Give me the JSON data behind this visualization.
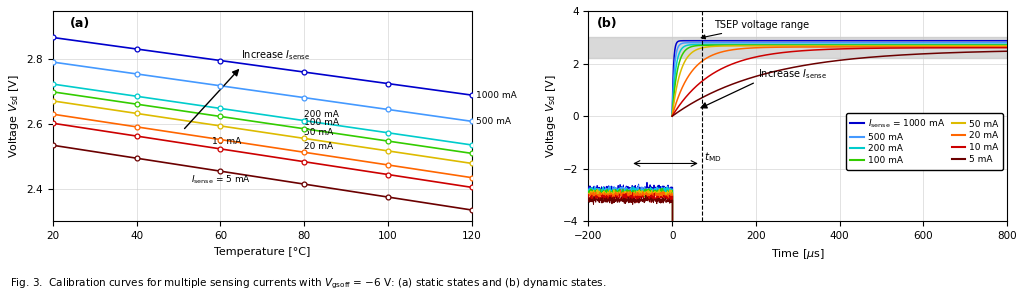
{
  "panel_a": {
    "title": "(a)",
    "xlabel": "Temperature [°C]",
    "ylabel": "Voltage $V_{\\rm sd}$ [V]",
    "xlim": [
      20,
      120
    ],
    "ylim": [
      2.3,
      2.95
    ],
    "xticks": [
      20,
      40,
      60,
      80,
      100,
      120
    ],
    "yticks": [
      2.4,
      2.6,
      2.8
    ],
    "temps": [
      20,
      40,
      60,
      80,
      100,
      120
    ],
    "currents": [
      5,
      10,
      20,
      50,
      100,
      200,
      500,
      1000
    ],
    "colors": [
      "#6B0000",
      "#CC0000",
      "#FF6600",
      "#DDBB00",
      "#33CC00",
      "#00CCCC",
      "#4499FF",
      "#0000CC"
    ],
    "intercepts": [
      2.535,
      2.603,
      2.631,
      2.672,
      2.7,
      2.724,
      2.792,
      2.868
    ],
    "slopes": [
      -0.002,
      -0.00198,
      -0.00196,
      -0.00193,
      -0.0019,
      -0.00188,
      -0.00183,
      -0.00178
    ]
  },
  "panel_b": {
    "title": "(b)",
    "xlabel": "Time [$\\mu$s]",
    "ylabel": "Voltage $V_{\\rm sd}$ [V]",
    "xlim": [
      -200,
      800
    ],
    "ylim": [
      -4,
      4
    ],
    "xticks": [
      -200,
      0,
      200,
      400,
      600,
      800
    ],
    "yticks": [
      -4,
      -2,
      0,
      2,
      4
    ],
    "tsep_low": 2.2,
    "tsep_high": 3.0,
    "tMD": 70,
    "colors": [
      "#0000CC",
      "#4499FF",
      "#00CCCC",
      "#33CC00",
      "#DDBB00",
      "#FF6600",
      "#CC0000",
      "#6B0000"
    ],
    "currents_b": [
      1000,
      500,
      200,
      100,
      50,
      20,
      10,
      5
    ],
    "legend_labels_left": [
      "$I_{\\rm sense}$ = 1000 mA",
      "500 mA",
      "200 mA",
      "100 mA"
    ],
    "legend_labels_right": [
      "50 mA",
      "20 mA",
      "10 mA",
      "5 mA"
    ],
    "legend_colors_left": [
      "#0000CC",
      "#4499FF",
      "#00CCCC",
      "#33CC00"
    ],
    "legend_colors_right": [
      "#DDBB00",
      "#FF6600",
      "#CC0000",
      "#6B0000"
    ],
    "steady_state": [
      2.868,
      2.792,
      2.724,
      2.7,
      2.672,
      2.631,
      2.603,
      2.535
    ],
    "pre_voltages": [
      -2.75,
      -2.8,
      -2.85,
      -2.9,
      -2.95,
      -3.0,
      -3.1,
      -3.2
    ],
    "tau": [
      3,
      5,
      8,
      12,
      20,
      45,
      100,
      220
    ]
  }
}
